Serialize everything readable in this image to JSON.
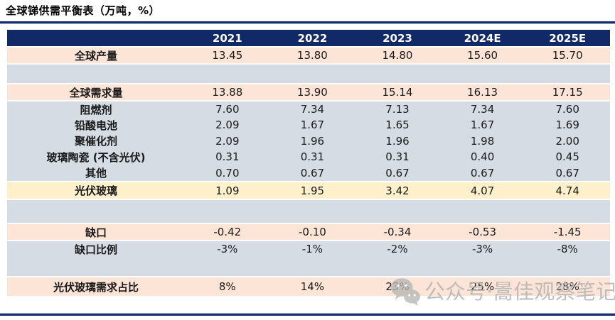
{
  "title": "全球锑供需平衡表（万吨，%）",
  "watermark": {
    "icon": "wechat-icon",
    "text": "公众号·暠佳观察笔记"
  },
  "colors": {
    "header_bg": "#112966",
    "header_text": "#ffffff",
    "band_pink": "#fce4d6",
    "band_gray": "#d6dce4",
    "band_yellow": "#fdf0cb",
    "rule": "#17316e",
    "cell_text": "#1a1a1a",
    "watermark": "#b5b5b5"
  },
  "table": {
    "header_labels": [
      "2021",
      "2022",
      "2023",
      "2024E",
      "2025E"
    ],
    "rows": [
      {
        "label": "全球产量",
        "values": [
          "13.45",
          "13.80",
          "14.80",
          "15.60",
          "15.70"
        ],
        "band": "pink"
      },
      {
        "label": "",
        "values": [
          "",
          "",
          "",
          "",
          ""
        ],
        "band": "spacer"
      },
      {
        "label": "全球需求量",
        "values": [
          "13.88",
          "13.90",
          "15.14",
          "16.13",
          "17.15"
        ],
        "band": "pink"
      },
      {
        "label": "阻燃剂",
        "values": [
          "7.60",
          "7.34",
          "7.13",
          "7.34",
          "7.60"
        ],
        "band": "gray"
      },
      {
        "label": "铅酸电池",
        "values": [
          "2.09",
          "1.67",
          "1.65",
          "1.67",
          "1.69"
        ],
        "band": "gray"
      },
      {
        "label": "聚催化剂",
        "values": [
          "2.09",
          "1.96",
          "1.96",
          "1.98",
          "2.00"
        ],
        "band": "gray"
      },
      {
        "label": "玻璃陶瓷 (不含光伏)",
        "values": [
          "0.31",
          "0.31",
          "0.31",
          "0.40",
          "0.45"
        ],
        "band": "gray"
      },
      {
        "label": "其他",
        "values": [
          "0.70",
          "0.67",
          "0.67",
          "0.67",
          "0.67"
        ],
        "band": "gray"
      },
      {
        "label": "光伏玻璃",
        "values": [
          "1.09",
          "1.95",
          "3.42",
          "4.07",
          "4.74"
        ],
        "band": "yellow"
      },
      {
        "label": "",
        "values": [
          "",
          "",
          "",
          "",
          ""
        ],
        "band": "spacer"
      },
      {
        "label": "缺口",
        "values": [
          "-0.42",
          "-0.10",
          "-0.34",
          "-0.53",
          "-1.45"
        ],
        "band": "pink"
      },
      {
        "label": "缺口比例",
        "values": [
          "-3%",
          "-1%",
          "-2%",
          "-3%",
          "-8%"
        ],
        "band": "gray"
      },
      {
        "label": "",
        "values": [
          "",
          "",
          "",
          "",
          ""
        ],
        "band": "spacer"
      },
      {
        "label": "光伏玻璃需求占比",
        "values": [
          "8%",
          "14%",
          "23%",
          "25%",
          "28%"
        ],
        "band": "pink"
      }
    ]
  },
  "chart_data": {
    "type": "table",
    "title": "全球锑供需平衡表（万吨，%）",
    "columns": [
      "2021",
      "2022",
      "2023",
      "2024E",
      "2025E"
    ],
    "rows": [
      {
        "label": "全球产量",
        "values": [
          13.45,
          13.8,
          14.8,
          15.6,
          15.7
        ]
      },
      {
        "label": "全球需求量",
        "values": [
          13.88,
          13.9,
          15.14,
          16.13,
          17.15
        ]
      },
      {
        "label": "阻燃剂",
        "values": [
          7.6,
          7.34,
          7.13,
          7.34,
          7.6
        ]
      },
      {
        "label": "铅酸电池",
        "values": [
          2.09,
          1.67,
          1.65,
          1.67,
          1.69
        ]
      },
      {
        "label": "聚催化剂",
        "values": [
          2.09,
          1.96,
          1.96,
          1.98,
          2.0
        ]
      },
      {
        "label": "玻璃陶瓷 (不含光伏)",
        "values": [
          0.31,
          0.31,
          0.31,
          0.4,
          0.45
        ]
      },
      {
        "label": "其他",
        "values": [
          0.7,
          0.67,
          0.67,
          0.67,
          0.67
        ]
      },
      {
        "label": "光伏玻璃",
        "values": [
          1.09,
          1.95,
          3.42,
          4.07,
          4.74
        ]
      },
      {
        "label": "缺口",
        "values": [
          -0.42,
          -0.1,
          -0.34,
          -0.53,
          -1.45
        ]
      },
      {
        "label": "缺口比例",
        "values": [
          "-3%",
          "-1%",
          "-2%",
          "-3%",
          "-8%"
        ]
      },
      {
        "label": "光伏玻璃需求占比",
        "values": [
          "8%",
          "14%",
          "23%",
          "25%",
          "28%"
        ]
      }
    ]
  }
}
